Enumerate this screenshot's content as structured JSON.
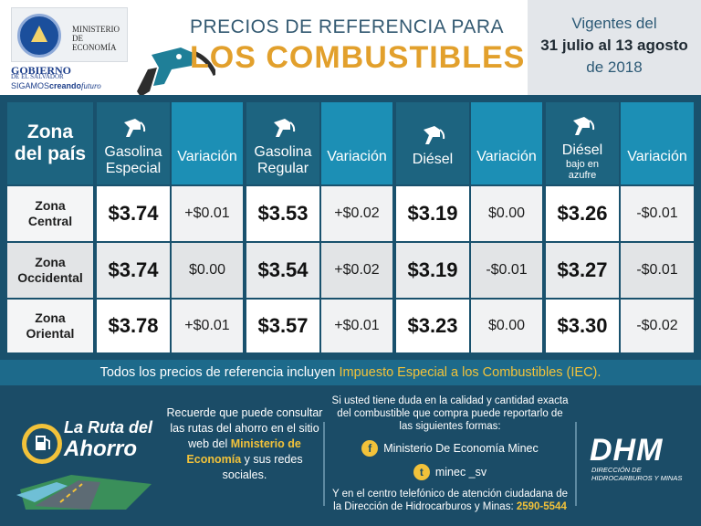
{
  "header": {
    "ministerio": "MINISTERIO DE ECONOMÍA",
    "gobierno": "GOBIERNO",
    "gobierno_sub": "DE EL SALVADOR",
    "sigamos_a": "SIGAMOS",
    "sigamos_b": "creando",
    "sigamos_c": "futuro",
    "title_line1": "PRECIOS DE REFERENCIA PARA",
    "title_line2": "LOS COMBUSTIBLES",
    "vigentes_line1": "Vigentes del",
    "vigentes_line2": "31 julio al 13 agosto",
    "vigentes_line3": "de 2018"
  },
  "table": {
    "zone_header_1": "Zona",
    "zone_header_2": "del país",
    "fuels": [
      {
        "name_1": "Gasolina",
        "name_2": "Especial",
        "var_label": "Variación"
      },
      {
        "name_1": "Gasolina",
        "name_2": "Regular",
        "var_label": "Variación"
      },
      {
        "name_1": "Diésel",
        "name_2": "",
        "var_label": "Variación"
      },
      {
        "name_1": "Diésel",
        "name_2": "bajo en azufre",
        "var_label": "Variación"
      }
    ],
    "rows": [
      {
        "zone_1": "Zona",
        "zone_2": "Central",
        "prices": [
          "$3.74",
          "$3.53",
          "$3.19",
          "$3.26"
        ],
        "variations": [
          "+$0.01",
          "+$0.02",
          "$0.00",
          "-$0.01"
        ]
      },
      {
        "zone_1": "Zona",
        "zone_2": "Occidental",
        "prices": [
          "$3.74",
          "$3.54",
          "$3.19",
          "$3.27"
        ],
        "variations": [
          "$0.00",
          "+$0.02",
          "-$0.01",
          "-$0.01"
        ]
      },
      {
        "zone_1": "Zona",
        "zone_2": "Oriental",
        "prices": [
          "$3.78",
          "$3.57",
          "$3.23",
          "$3.30"
        ],
        "variations": [
          "+$0.01",
          "+$0.01",
          "$0.00",
          "-$0.02"
        ]
      }
    ]
  },
  "note": {
    "text_a": "Todos los precios de referencia incluyen ",
    "text_b": "Impuesto Especial a los Combustibles (IEC)."
  },
  "footer": {
    "ruta_1": "La Ruta del",
    "ruta_2": "Ahorro",
    "recuerde_a": "Recuerde que puede consultar las rutas del ahorro en el sitio web del",
    "recuerde_b": "Ministerio de Economía",
    "recuerde_c": "y sus redes sociales.",
    "contact_intro": "Si usted tiene duda en la calidad y cantidad exacta del combustible que compra puede reportarlo de las siguientes formas:",
    "facebook": "Ministerio De Economía Minec",
    "twitter": "minec _sv",
    "phone_text": "Y en el centro telefónico de atención ciudadana de la Dirección de Hidrocarburos y Minas:",
    "phone": "2590-5544",
    "dhm": "DHM",
    "dhm_sub": "DIRECCIÓN DE HIDROCARBUROS Y MINAS"
  },
  "colors": {
    "background": "#1d4f6b",
    "header_title": "#345a72",
    "accent_gold": "#e2a02c",
    "variation_header": "#1c8fb5",
    "highlight_yellow": "#f2c23a"
  },
  "icons": [
    "fuel-nozzle-icon",
    "fuel-pump-icon",
    "facebook-icon",
    "twitter-icon",
    "gas-station-icon"
  ]
}
